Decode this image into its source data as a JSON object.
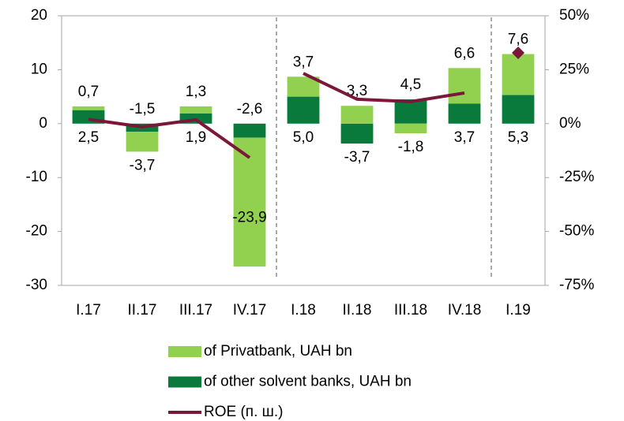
{
  "chart_data": {
    "type": "bar",
    "stacked": true,
    "categories": [
      "I.17",
      "II.17",
      "III.17",
      "IV.17",
      "I.18",
      "II.18",
      "III.18",
      "IV.18",
      "I.19"
    ],
    "series": [
      {
        "name": "of Privatbank, UAH bn",
        "color": "#92d050",
        "values": [
          0.7,
          -3.7,
          1.3,
          -23.9,
          3.7,
          3.3,
          -1.8,
          6.6,
          7.6
        ],
        "value_labels": [
          "0,7",
          "-3,7",
          "1,3",
          "-23,9",
          "3,7",
          "3,3",
          "-1,8",
          "6,6",
          "7,6"
        ]
      },
      {
        "name": "of other solvent banks, UAH bn",
        "color": "#0a7a3c",
        "values": [
          2.5,
          -1.5,
          1.9,
          -2.6,
          5.0,
          -3.7,
          4.5,
          3.7,
          5.3
        ],
        "value_labels": [
          "2,5",
          "-1,5",
          "1,9",
          "-2,6",
          "5,0",
          "-3,7",
          "4,5",
          "3,7",
          "5,3"
        ]
      },
      {
        "name": "ROE (п. ш.)",
        "type": "line",
        "axis": "y2",
        "color": "#7b1738",
        "values": [
          2,
          -1.5,
          1.8,
          -15.8,
          23.3,
          11.3,
          10.2,
          14.2,
          32.8
        ],
        "segments": [
          [
            0,
            3
          ],
          [
            4,
            7
          ]
        ],
        "markers": [
          8
        ]
      }
    ],
    "ylim": [
      -30,
      20
    ],
    "yticks": [
      -30,
      -20,
      -10,
      0,
      10,
      20
    ],
    "y2lim": [
      -75,
      50
    ],
    "y2ticks": [
      {
        "value": -75,
        "label": "-75%"
      },
      {
        "value": -50,
        "label": "-50%"
      },
      {
        "value": -25,
        "label": "-25%"
      },
      {
        "value": 0,
        "label": "0%"
      },
      {
        "value": 25,
        "label": "25%"
      },
      {
        "value": 50,
        "label": "50%"
      }
    ],
    "dividers": [
      4,
      8
    ],
    "legend": "bottom"
  }
}
